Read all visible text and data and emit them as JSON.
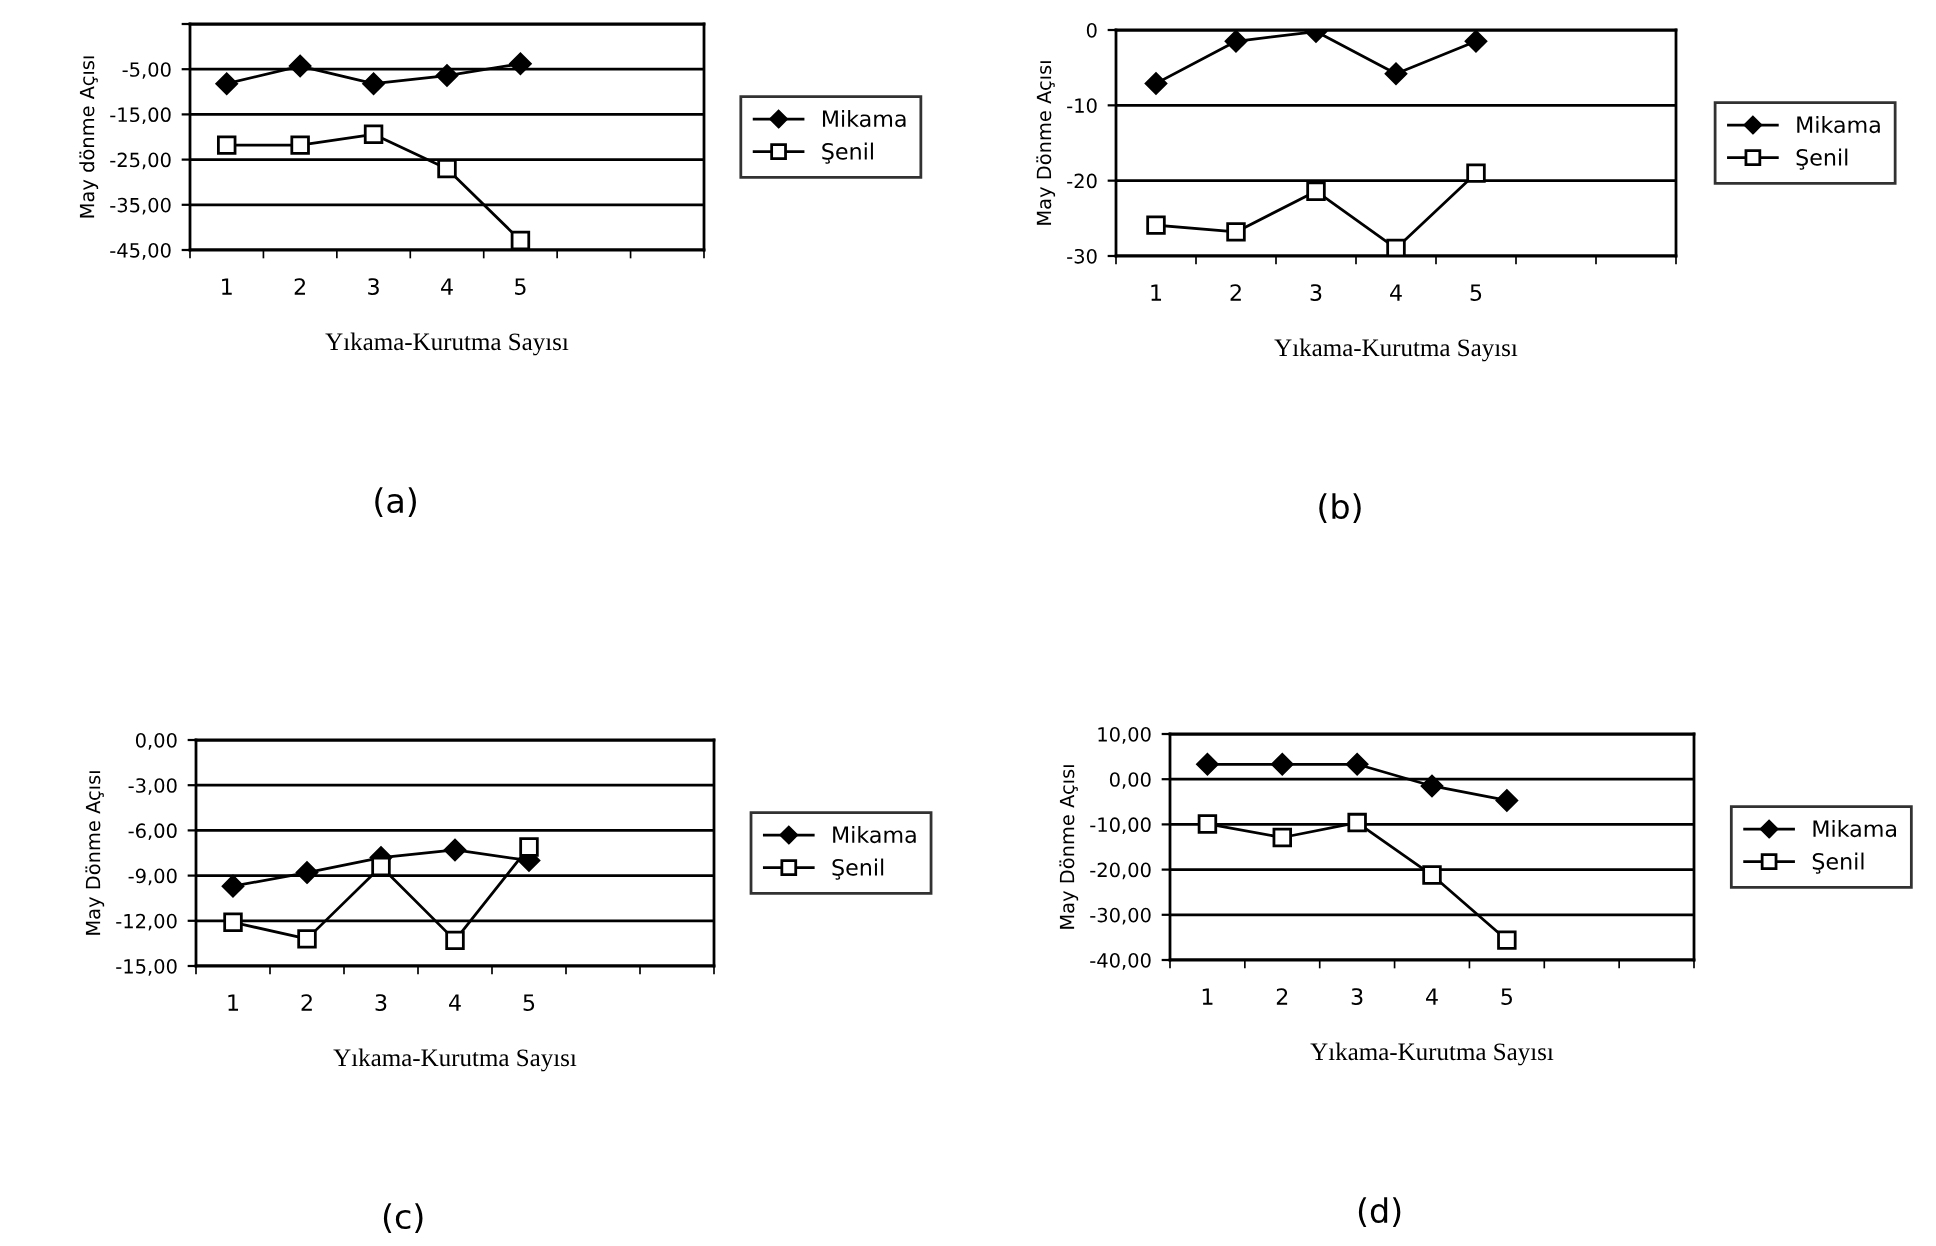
{
  "chart_data": [
    {
      "type": "line",
      "title": "(a)",
      "xlabel": "Yıkama-Kurutma Sayısı",
      "ylabel": "May dönme Açısı",
      "categories": [
        "1",
        "2",
        "3",
        "4",
        "5",
        null,
        null
      ],
      "ylim": [
        -45,
        5
      ],
      "yticks": [
        {
          "value": -45,
          "label": "-45,00"
        },
        {
          "value": -35,
          "label": "-35,00"
        },
        {
          "value": -25,
          "label": "-25,00"
        },
        {
          "value": -15,
          "label": "-15,00"
        },
        {
          "value": -5,
          "label": "-5,00"
        },
        {
          "value": 5,
          "label": null
        }
      ],
      "grid": "y",
      "legend": "right",
      "series": [
        {
          "name": "Mikama",
          "color": "#000000",
          "marker": "diamond",
          "values": [
            -8.2,
            -4.3,
            -8.2,
            -6.4,
            -3.8,
            null,
            null
          ]
        },
        {
          "name": "Şenil",
          "color": "#000000",
          "marker": "square",
          "values": [
            -21.8,
            -21.8,
            -19.4,
            -27,
            -42.9,
            null,
            null
          ]
        }
      ]
    },
    {
      "type": "line",
      "title": "(b)",
      "xlabel": "Yıkama-Kurutma Sayısı",
      "ylabel": "May Dönme Açısı",
      "categories": [
        "1",
        "2",
        "3",
        "4",
        "5",
        null,
        null
      ],
      "ylim": [
        -30,
        0
      ],
      "yticks": [
        -30,
        -20,
        -10,
        0
      ],
      "grid": "y",
      "legend": "right",
      "series": [
        {
          "name": "Mikama",
          "color": "#000000",
          "marker": "diamond",
          "values": [
            -7.1,
            -1.5,
            -0.2,
            -5.8,
            -1.5,
            null,
            null
          ]
        },
        {
          "name": "Şenil",
          "color": "#000000",
          "marker": "square",
          "values": [
            -25.9,
            -26.8,
            -21.4,
            -29,
            -19,
            null,
            null
          ]
        }
      ]
    },
    {
      "type": "line",
      "title": "(c)",
      "xlabel": "Yıkama-Kurutma Sayısı",
      "ylabel": "May Dönme Açısı",
      "categories": [
        "1",
        "2",
        "3",
        "4",
        "5",
        null,
        null
      ],
      "ylim": [
        -15,
        0
      ],
      "yticks": [
        {
          "value": -15,
          "label": "-15,00"
        },
        {
          "value": -12,
          "label": "-12,00"
        },
        {
          "value": -9,
          "label": "-9,00"
        },
        {
          "value": -6,
          "label": "-6,00"
        },
        {
          "value": -3,
          "label": "-3,00"
        },
        {
          "value": 0,
          "label": "0,00"
        }
      ],
      "grid": "y",
      "legend": "right",
      "series": [
        {
          "name": "Mikama",
          "color": "#000000",
          "marker": "diamond",
          "values": [
            -9.7,
            -8.8,
            -7.8,
            -7.3,
            -8.0,
            null,
            null
          ]
        },
        {
          "name": "Şenil",
          "color": "#000000",
          "marker": "square",
          "values": [
            -12.1,
            -13.2,
            -8.4,
            -13.3,
            -7.1,
            null,
            null
          ]
        }
      ]
    },
    {
      "type": "line",
      "title": "(d)",
      "xlabel": "Yıkama-Kurutma Sayısı",
      "ylabel": "May Dönme Açısı",
      "categories": [
        "1",
        "2",
        "3",
        "4",
        "5",
        null,
        null
      ],
      "ylim": [
        -40,
        10
      ],
      "yticks": [
        {
          "value": -40,
          "label": "-40,00"
        },
        {
          "value": -30,
          "label": "-30,00"
        },
        {
          "value": -20,
          "label": "-20,00"
        },
        {
          "value": -10,
          "label": "-10,00"
        },
        {
          "value": 0,
          "label": "0,00"
        },
        {
          "value": 10,
          "label": "10,00"
        }
      ],
      "grid": "y",
      "legend": "right",
      "series": [
        {
          "name": "Mikama",
          "color": "#000000",
          "marker": "diamond",
          "values": [
            3.3,
            3.3,
            3.3,
            -1.5,
            -4.7,
            null,
            null
          ]
        },
        {
          "name": "Şenil",
          "color": "#000000",
          "marker": "square",
          "values": [
            -9.9,
            -12.9,
            -9.6,
            -21.2,
            -35.6,
            null,
            null
          ]
        }
      ]
    }
  ]
}
